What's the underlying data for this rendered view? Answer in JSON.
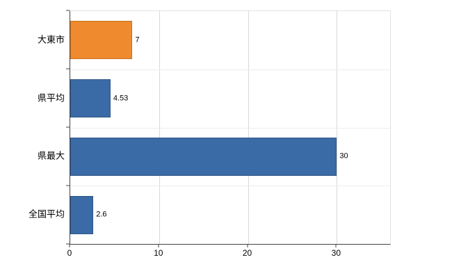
{
  "chart_data": {
    "type": "bar",
    "orientation": "horizontal",
    "title": "",
    "xlabel": "",
    "ylabel": "",
    "categories": [
      "大東市",
      "県平均",
      "県最大",
      "全国平均"
    ],
    "values": [
      7,
      4.53,
      30,
      2.6
    ],
    "value_labels": [
      "7",
      "4.53",
      "30",
      "2.6"
    ],
    "bar_colors": [
      "#ef8b2e",
      "#3b6ba6",
      "#3b6ba6",
      "#3b6ba6"
    ],
    "bar_border_colors": [
      "#c9701c",
      "#2d5587",
      "#2d5587",
      "#2d5587"
    ],
    "x_ticks": [
      0,
      10,
      20,
      30
    ],
    "x_tick_labels": [
      "0",
      "10",
      "20",
      "30"
    ],
    "xlim": [
      0,
      36
    ],
    "grid": "vertical-major-and-row-separators",
    "legend": "none"
  },
  "colors": {
    "highlight_bar": "#ef8b2e",
    "default_bar": "#3b6ba6",
    "gridline": "#d9d9d9",
    "row_separator": "#ececec",
    "axis": "#404040",
    "background": "#ffffff"
  }
}
